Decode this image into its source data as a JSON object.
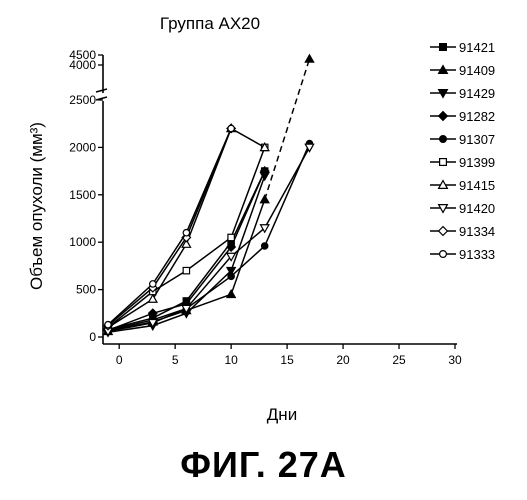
{
  "figure_label": "ФИГ. 27А",
  "chart_data": {
    "type": "line",
    "title": "Группа AX20",
    "xlabel": "Дни",
    "ylabel": "Объем опухоли (мм³)",
    "xlim": [
      -1,
      30
    ],
    "x_ticks": [
      0,
      5,
      10,
      15,
      20,
      25,
      30
    ],
    "ylim": [
      0,
      2500
    ],
    "y_ticks": [
      0,
      500,
      1000,
      1500,
      2000,
      2500
    ],
    "broken_axis": {
      "ylim_upper": [
        4000,
        4500
      ],
      "y_ticks_upper": [
        4000,
        4500
      ]
    },
    "grid": false,
    "legend_position": "right",
    "series": [
      {
        "name": "91421",
        "marker": "square-filled",
        "x": [
          -1,
          3,
          6,
          10,
          13
        ],
        "y": [
          80,
          200,
          380,
          1000,
          1750
        ]
      },
      {
        "name": "91409",
        "marker": "triangle-up-filled",
        "x": [
          -1,
          3,
          6,
          10,
          13,
          17
        ],
        "y": [
          60,
          160,
          280,
          450,
          1450,
          4300
        ]
      },
      {
        "name": "91429",
        "marker": "triangle-down-filled",
        "x": [
          -1,
          3,
          6,
          10,
          13
        ],
        "y": [
          50,
          120,
          250,
          700,
          1700
        ]
      },
      {
        "name": "91282",
        "marker": "diamond-filled",
        "x": [
          -1,
          3,
          6,
          10,
          13
        ],
        "y": [
          70,
          250,
          350,
          950,
          1750
        ]
      },
      {
        "name": "91307",
        "marker": "circle-filled",
        "x": [
          -1,
          3,
          6,
          10,
          13,
          17
        ],
        "y": [
          70,
          180,
          300,
          640,
          960,
          2040
        ]
      },
      {
        "name": "91399",
        "marker": "square-open",
        "x": [
          -1,
          3,
          6,
          10,
          13
        ],
        "y": [
          100,
          480,
          700,
          1050,
          2000
        ]
      },
      {
        "name": "91415",
        "marker": "triangle-up-open",
        "x": [
          -1,
          3,
          6,
          10,
          13
        ],
        "y": [
          100,
          400,
          980,
          2200,
          2000
        ]
      },
      {
        "name": "91420",
        "marker": "triangle-down-open",
        "x": [
          -1,
          3,
          6,
          10,
          13,
          17
        ],
        "y": [
          60,
          150,
          300,
          850,
          1150,
          2000
        ]
      },
      {
        "name": "91334",
        "marker": "diamond-open",
        "x": [
          -1,
          3,
          6,
          10
        ],
        "y": [
          120,
          520,
          1050,
          2200
        ]
      },
      {
        "name": "91333",
        "marker": "circle-open",
        "x": [
          -1,
          3,
          6,
          10
        ],
        "y": [
          130,
          560,
          1100,
          2200
        ]
      }
    ]
  }
}
